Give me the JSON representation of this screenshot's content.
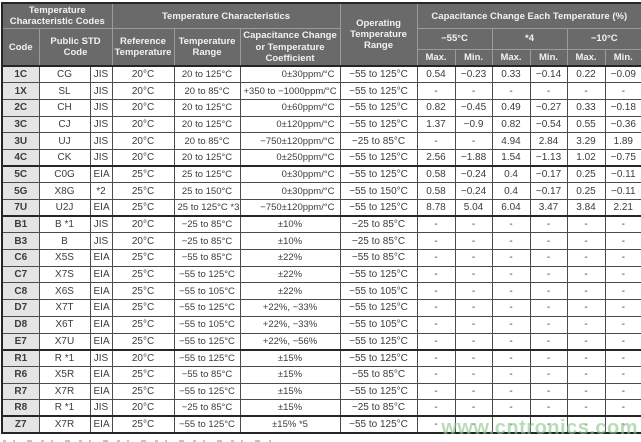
{
  "table": {
    "header": {
      "group_codes": "Temperature Characteristic Codes",
      "group_characteristics": "Temperature Characteristics",
      "operating": "Operating Temperature Range",
      "group_capchange": "Capacitance Change Each Temperature (%)",
      "code": "Code",
      "public_std": "Public STD Code",
      "ref_temp": "Reference Temperature",
      "temp_range": "Temperature Range",
      "cap_change": "Capacitance Change or Temperature Coefficient",
      "t_minus55": "−55°C",
      "t_star4": "*4",
      "t_minus10": "−10°C",
      "max": "Max.",
      "min": "Min."
    },
    "rows": [
      {
        "cells": [
          "1C",
          "CG",
          "JIS",
          "20°C",
          "20 to 125°C",
          "0±30ppm/°C",
          "−55 to 125°C",
          "0.54",
          "−0.23",
          "0.33",
          "−0.14",
          "0.22",
          "−0.09"
        ],
        "group_end": false
      },
      {
        "cells": [
          "1X",
          "SL",
          "JIS",
          "20°C",
          "20 to 85°C",
          "+350 to −1000ppm/°C",
          "−55 to 125°C",
          "-",
          "-",
          "-",
          "-",
          "-",
          "-"
        ],
        "group_end": false
      },
      {
        "cells": [
          "2C",
          "CH",
          "JIS",
          "20°C",
          "20 to 125°C",
          "0±60ppm/°C",
          "−55 to 125°C",
          "0.82",
          "−0.45",
          "0.49",
          "−0.27",
          "0.33",
          "−0.18"
        ],
        "group_end": false
      },
      {
        "cells": [
          "3C",
          "CJ",
          "JIS",
          "20°C",
          "20 to 125°C",
          "0±120ppm/°C",
          "−55 to 125°C",
          "1.37",
          "−0.9",
          "0.82",
          "−0.54",
          "0.55",
          "−0.36"
        ],
        "group_end": false
      },
      {
        "cells": [
          "3U",
          "UJ",
          "JIS",
          "20°C",
          "20 to 85°C",
          "−750±120ppm/°C",
          "−25 to 85°C",
          "-",
          "-",
          "4.94",
          "2.84",
          "3.29",
          "1.89"
        ],
        "group_end": false
      },
      {
        "cells": [
          "4C",
          "CK",
          "JIS",
          "20°C",
          "20 to 125°C",
          "0±250ppm/°C",
          "−55 to 125°C",
          "2.56",
          "−1.88",
          "1.54",
          "−1.13",
          "1.02",
          "−0.75"
        ],
        "group_end": true
      },
      {
        "cells": [
          "5C",
          "C0G",
          "EIA",
          "25°C",
          "25 to 125°C",
          "0±30ppm/°C",
          "−55 to 125°C",
          "0.58",
          "−0.24",
          "0.4",
          "−0.17",
          "0.25",
          "−0.11"
        ],
        "group_end": false
      },
      {
        "cells": [
          "5G",
          "X8G",
          "*2",
          "25°C",
          "25 to 150°C",
          "0±30ppm/°C",
          "−55 to 150°C",
          "0.58",
          "−0.24",
          "0.4",
          "−0.17",
          "0.25",
          "−0.11"
        ],
        "group_end": false
      },
      {
        "cells": [
          "7U",
          "U2J",
          "EIA",
          "25°C",
          "25 to 125°C *3",
          "−750±120ppm/°C",
          "−55 to 125°C",
          "8.78",
          "5.04",
          "6.04",
          "3.47",
          "3.84",
          "2.21"
        ],
        "group_end": true
      },
      {
        "cells": [
          "B1",
          "B *1",
          "JIS",
          "20°C",
          "−25 to 85°C",
          "±10%",
          "−25 to 85°C",
          "-",
          "-",
          "-",
          "-",
          "-",
          "-"
        ],
        "group_end": false
      },
      {
        "cells": [
          "B3",
          "B",
          "JIS",
          "20°C",
          "−25 to 85°C",
          "±10%",
          "−25 to 85°C",
          "-",
          "-",
          "-",
          "-",
          "-",
          "-"
        ],
        "group_end": false
      },
      {
        "cells": [
          "C6",
          "X5S",
          "EIA",
          "25°C",
          "−55 to 85°C",
          "±22%",
          "−55 to 85°C",
          "-",
          "-",
          "-",
          "-",
          "-",
          "-"
        ],
        "group_end": false
      },
      {
        "cells": [
          "C7",
          "X7S",
          "EIA",
          "25°C",
          "−55 to 125°C",
          "±22%",
          "−55 to 125°C",
          "-",
          "-",
          "-",
          "-",
          "-",
          "-"
        ],
        "group_end": false
      },
      {
        "cells": [
          "C8",
          "X6S",
          "EIA",
          "25°C",
          "−55 to 105°C",
          "±22%",
          "−55 to 105°C",
          "-",
          "-",
          "-",
          "-",
          "-",
          "-"
        ],
        "group_end": false
      },
      {
        "cells": [
          "D7",
          "X7T",
          "EIA",
          "25°C",
          "−55 to 125°C",
          "+22%, −33%",
          "−55 to 125°C",
          "-",
          "-",
          "-",
          "-",
          "-",
          "-"
        ],
        "group_end": false
      },
      {
        "cells": [
          "D8",
          "X6T",
          "EIA",
          "25°C",
          "−55 to 105°C",
          "+22%, −33%",
          "−55 to 105°C",
          "-",
          "-",
          "-",
          "-",
          "-",
          "-"
        ],
        "group_end": false
      },
      {
        "cells": [
          "E7",
          "X7U",
          "EIA",
          "25°C",
          "−55 to 125°C",
          "+22%, −56%",
          "−55 to 125°C",
          "-",
          "-",
          "-",
          "-",
          "-",
          "-"
        ],
        "group_end": true
      },
      {
        "cells": [
          "R1",
          "R *1",
          "JIS",
          "20°C",
          "−55 to 125°C",
          "±15%",
          "−55 to 125°C",
          "-",
          "-",
          "-",
          "-",
          "-",
          "-"
        ],
        "group_end": false
      },
      {
        "cells": [
          "R6",
          "X5R",
          "EIA",
          "25°C",
          "−55 to 85°C",
          "±15%",
          "−55 to 85°C",
          "-",
          "-",
          "-",
          "-",
          "-",
          "-"
        ],
        "group_end": false
      },
      {
        "cells": [
          "R7",
          "X7R",
          "EIA",
          "25°C",
          "−55 to 125°C",
          "±15%",
          "−55 to 125°C",
          "-",
          "-",
          "-",
          "-",
          "-",
          "-"
        ],
        "group_end": false
      },
      {
        "cells": [
          "R8",
          "R *1",
          "JIS",
          "20°C",
          "−25 to 85°C",
          "±15%",
          "−25 to 85°C",
          "-",
          "-",
          "-",
          "-",
          "-",
          "-"
        ],
        "group_end": true
      },
      {
        "cells": [
          "Z7",
          "X7R",
          "EIA",
          "25°C",
          "−55 to 125°C",
          "±15% *5",
          "−55 to 125°C",
          "-",
          "-",
          "-",
          "-",
          "-",
          "-"
        ],
        "group_end": false
      }
    ]
  },
  "watermark": "www.cntronics.com",
  "colors": {
    "header_bg": "#6a6a6a",
    "header_text": "#f2f2f2",
    "code_col_bg": "#e4e4e4",
    "grid": "#4b4b4b",
    "heavy": "#262626",
    "watermark": "#8cc88c"
  }
}
